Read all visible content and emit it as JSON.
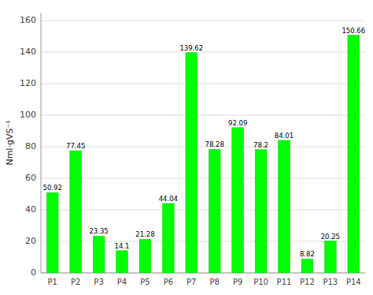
{
  "chart_data": {
    "type": "bar",
    "ylabel": "Nml·gVS⁻¹",
    "categories": [
      "P1",
      "P2",
      "P3",
      "P4",
      "P5",
      "P6",
      "P7",
      "P8",
      "P9",
      "P10",
      "P11",
      "P12",
      "P13",
      "P14"
    ],
    "values": [
      50.92,
      77.45,
      23.35,
      14.1,
      21.28,
      44.04,
      139.62,
      78.28,
      92.09,
      78.2,
      84.01,
      8.82,
      20.25,
      150.66
    ],
    "color": "#00FF00",
    "ylim": [
      0,
      165
    ],
    "yticks": [
      0,
      20,
      40,
      60,
      80,
      100,
      120,
      140,
      160
    ],
    "grid": true,
    "data_labels": true
  }
}
